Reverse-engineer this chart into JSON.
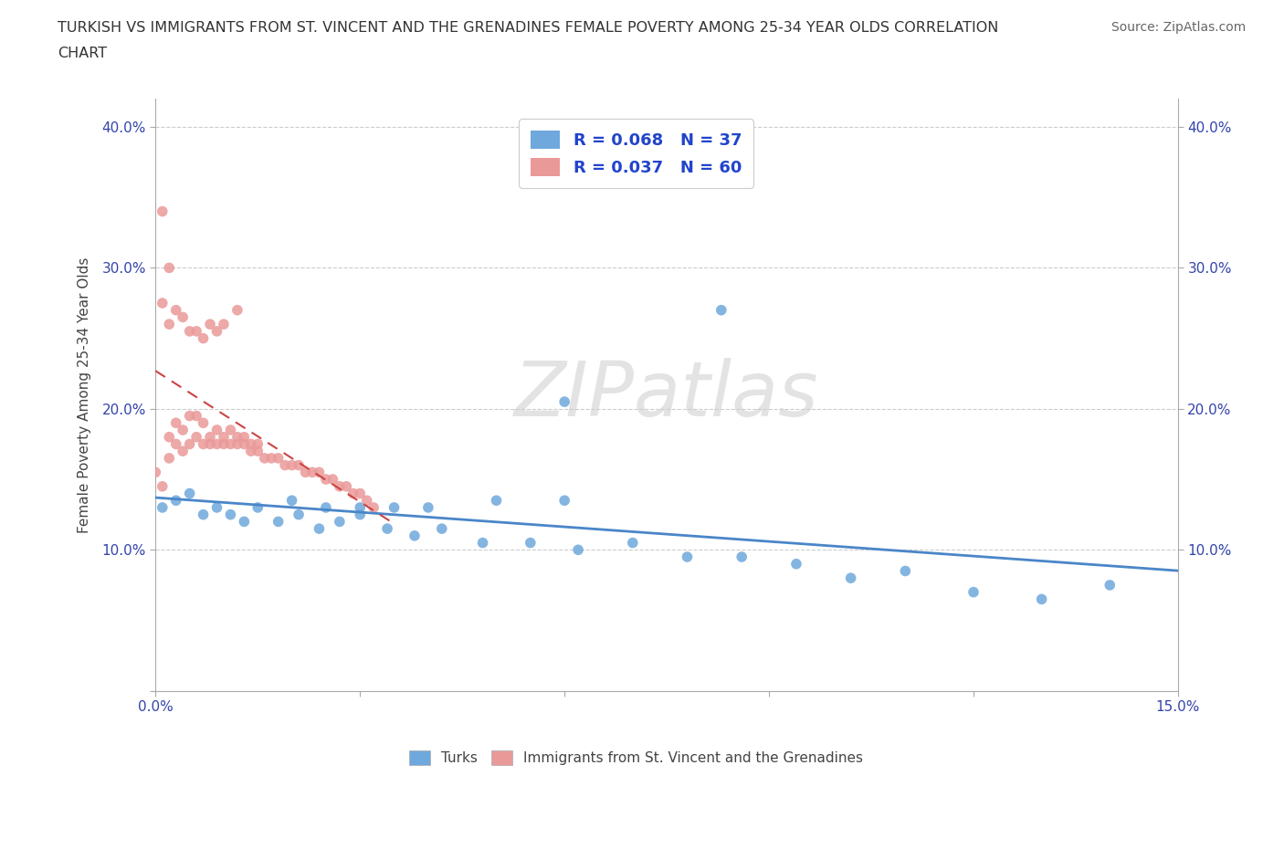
{
  "title_line1": "TURKISH VS IMMIGRANTS FROM ST. VINCENT AND THE GRENADINES FEMALE POVERTY AMONG 25-34 YEAR OLDS CORRELATION",
  "title_line2": "CHART",
  "source": "Source: ZipAtlas.com",
  "ylabel": "Female Poverty Among 25-34 Year Olds",
  "xlim": [
    0.0,
    0.15
  ],
  "ylim": [
    0.0,
    0.42
  ],
  "blue_color": "#6fa8dc",
  "pink_color": "#ea9999",
  "line_blue": "#4a86c8",
  "line_pink": "#cc4444",
  "background_color": "#ffffff",
  "grid_color": "#cccccc",
  "turks_x": [
    0.001,
    0.003,
    0.005,
    0.007,
    0.009,
    0.011,
    0.013,
    0.015,
    0.018,
    0.021,
    0.024,
    0.027,
    0.03,
    0.034,
    0.038,
    0.042,
    0.048,
    0.055,
    0.062,
    0.07,
    0.078,
    0.086,
    0.094,
    0.102,
    0.11,
    0.12,
    0.13,
    0.14,
    0.02,
    0.025,
    0.03,
    0.035,
    0.04,
    0.05,
    0.06,
    0.083,
    0.06
  ],
  "turks_y": [
    0.13,
    0.135,
    0.14,
    0.125,
    0.13,
    0.125,
    0.12,
    0.13,
    0.12,
    0.125,
    0.115,
    0.12,
    0.125,
    0.115,
    0.11,
    0.115,
    0.105,
    0.105,
    0.1,
    0.105,
    0.095,
    0.095,
    0.09,
    0.08,
    0.085,
    0.07,
    0.065,
    0.075,
    0.135,
    0.13,
    0.13,
    0.13,
    0.13,
    0.135,
    0.135,
    0.27,
    0.205
  ],
  "svg_x": [
    0.0,
    0.001,
    0.002,
    0.002,
    0.003,
    0.003,
    0.004,
    0.004,
    0.005,
    0.005,
    0.006,
    0.006,
    0.007,
    0.007,
    0.008,
    0.008,
    0.009,
    0.009,
    0.01,
    0.01,
    0.011,
    0.011,
    0.012,
    0.012,
    0.013,
    0.013,
    0.014,
    0.014,
    0.015,
    0.015,
    0.016,
    0.017,
    0.018,
    0.019,
    0.02,
    0.021,
    0.022,
    0.023,
    0.024,
    0.025,
    0.026,
    0.027,
    0.028,
    0.029,
    0.03,
    0.031,
    0.032,
    0.001,
    0.002,
    0.003,
    0.004,
    0.005,
    0.006,
    0.007,
    0.008,
    0.009,
    0.01,
    0.012,
    0.001,
    0.002
  ],
  "svg_y": [
    0.155,
    0.145,
    0.165,
    0.18,
    0.175,
    0.19,
    0.17,
    0.185,
    0.175,
    0.195,
    0.18,
    0.195,
    0.175,
    0.19,
    0.18,
    0.175,
    0.175,
    0.185,
    0.175,
    0.18,
    0.175,
    0.185,
    0.175,
    0.18,
    0.175,
    0.18,
    0.17,
    0.175,
    0.17,
    0.175,
    0.165,
    0.165,
    0.165,
    0.16,
    0.16,
    0.16,
    0.155,
    0.155,
    0.155,
    0.15,
    0.15,
    0.145,
    0.145,
    0.14,
    0.14,
    0.135,
    0.13,
    0.275,
    0.26,
    0.27,
    0.265,
    0.255,
    0.255,
    0.25,
    0.26,
    0.255,
    0.26,
    0.27,
    0.34,
    0.3
  ]
}
